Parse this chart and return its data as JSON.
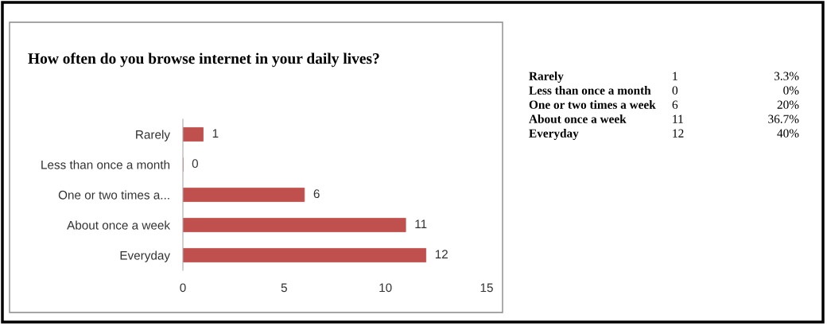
{
  "chart_data": [
    {
      "type": "bar",
      "orientation": "horizontal",
      "title": "How often do you browse internet in your daily lives?",
      "categories": [
        "Rarely",
        "Less than once a month",
        "One or two times a...",
        "About once a week",
        "Everyday"
      ],
      "values": [
        1,
        0,
        6,
        11,
        12
      ],
      "color": "#c0504d",
      "xlim": [
        0,
        15
      ],
      "xticks": [
        0,
        5,
        10,
        15
      ],
      "data_labels": true
    },
    {
      "type": "other",
      "annotations": [
        "Rarely",
        "1",
        "3.3%",
        "Less than once a month",
        "0",
        "0%",
        "One or two times a week",
        "6",
        "20%",
        "About once a week",
        "11",
        "36.7%",
        "Everyday",
        "12",
        "40%"
      ]
    }
  ]
}
